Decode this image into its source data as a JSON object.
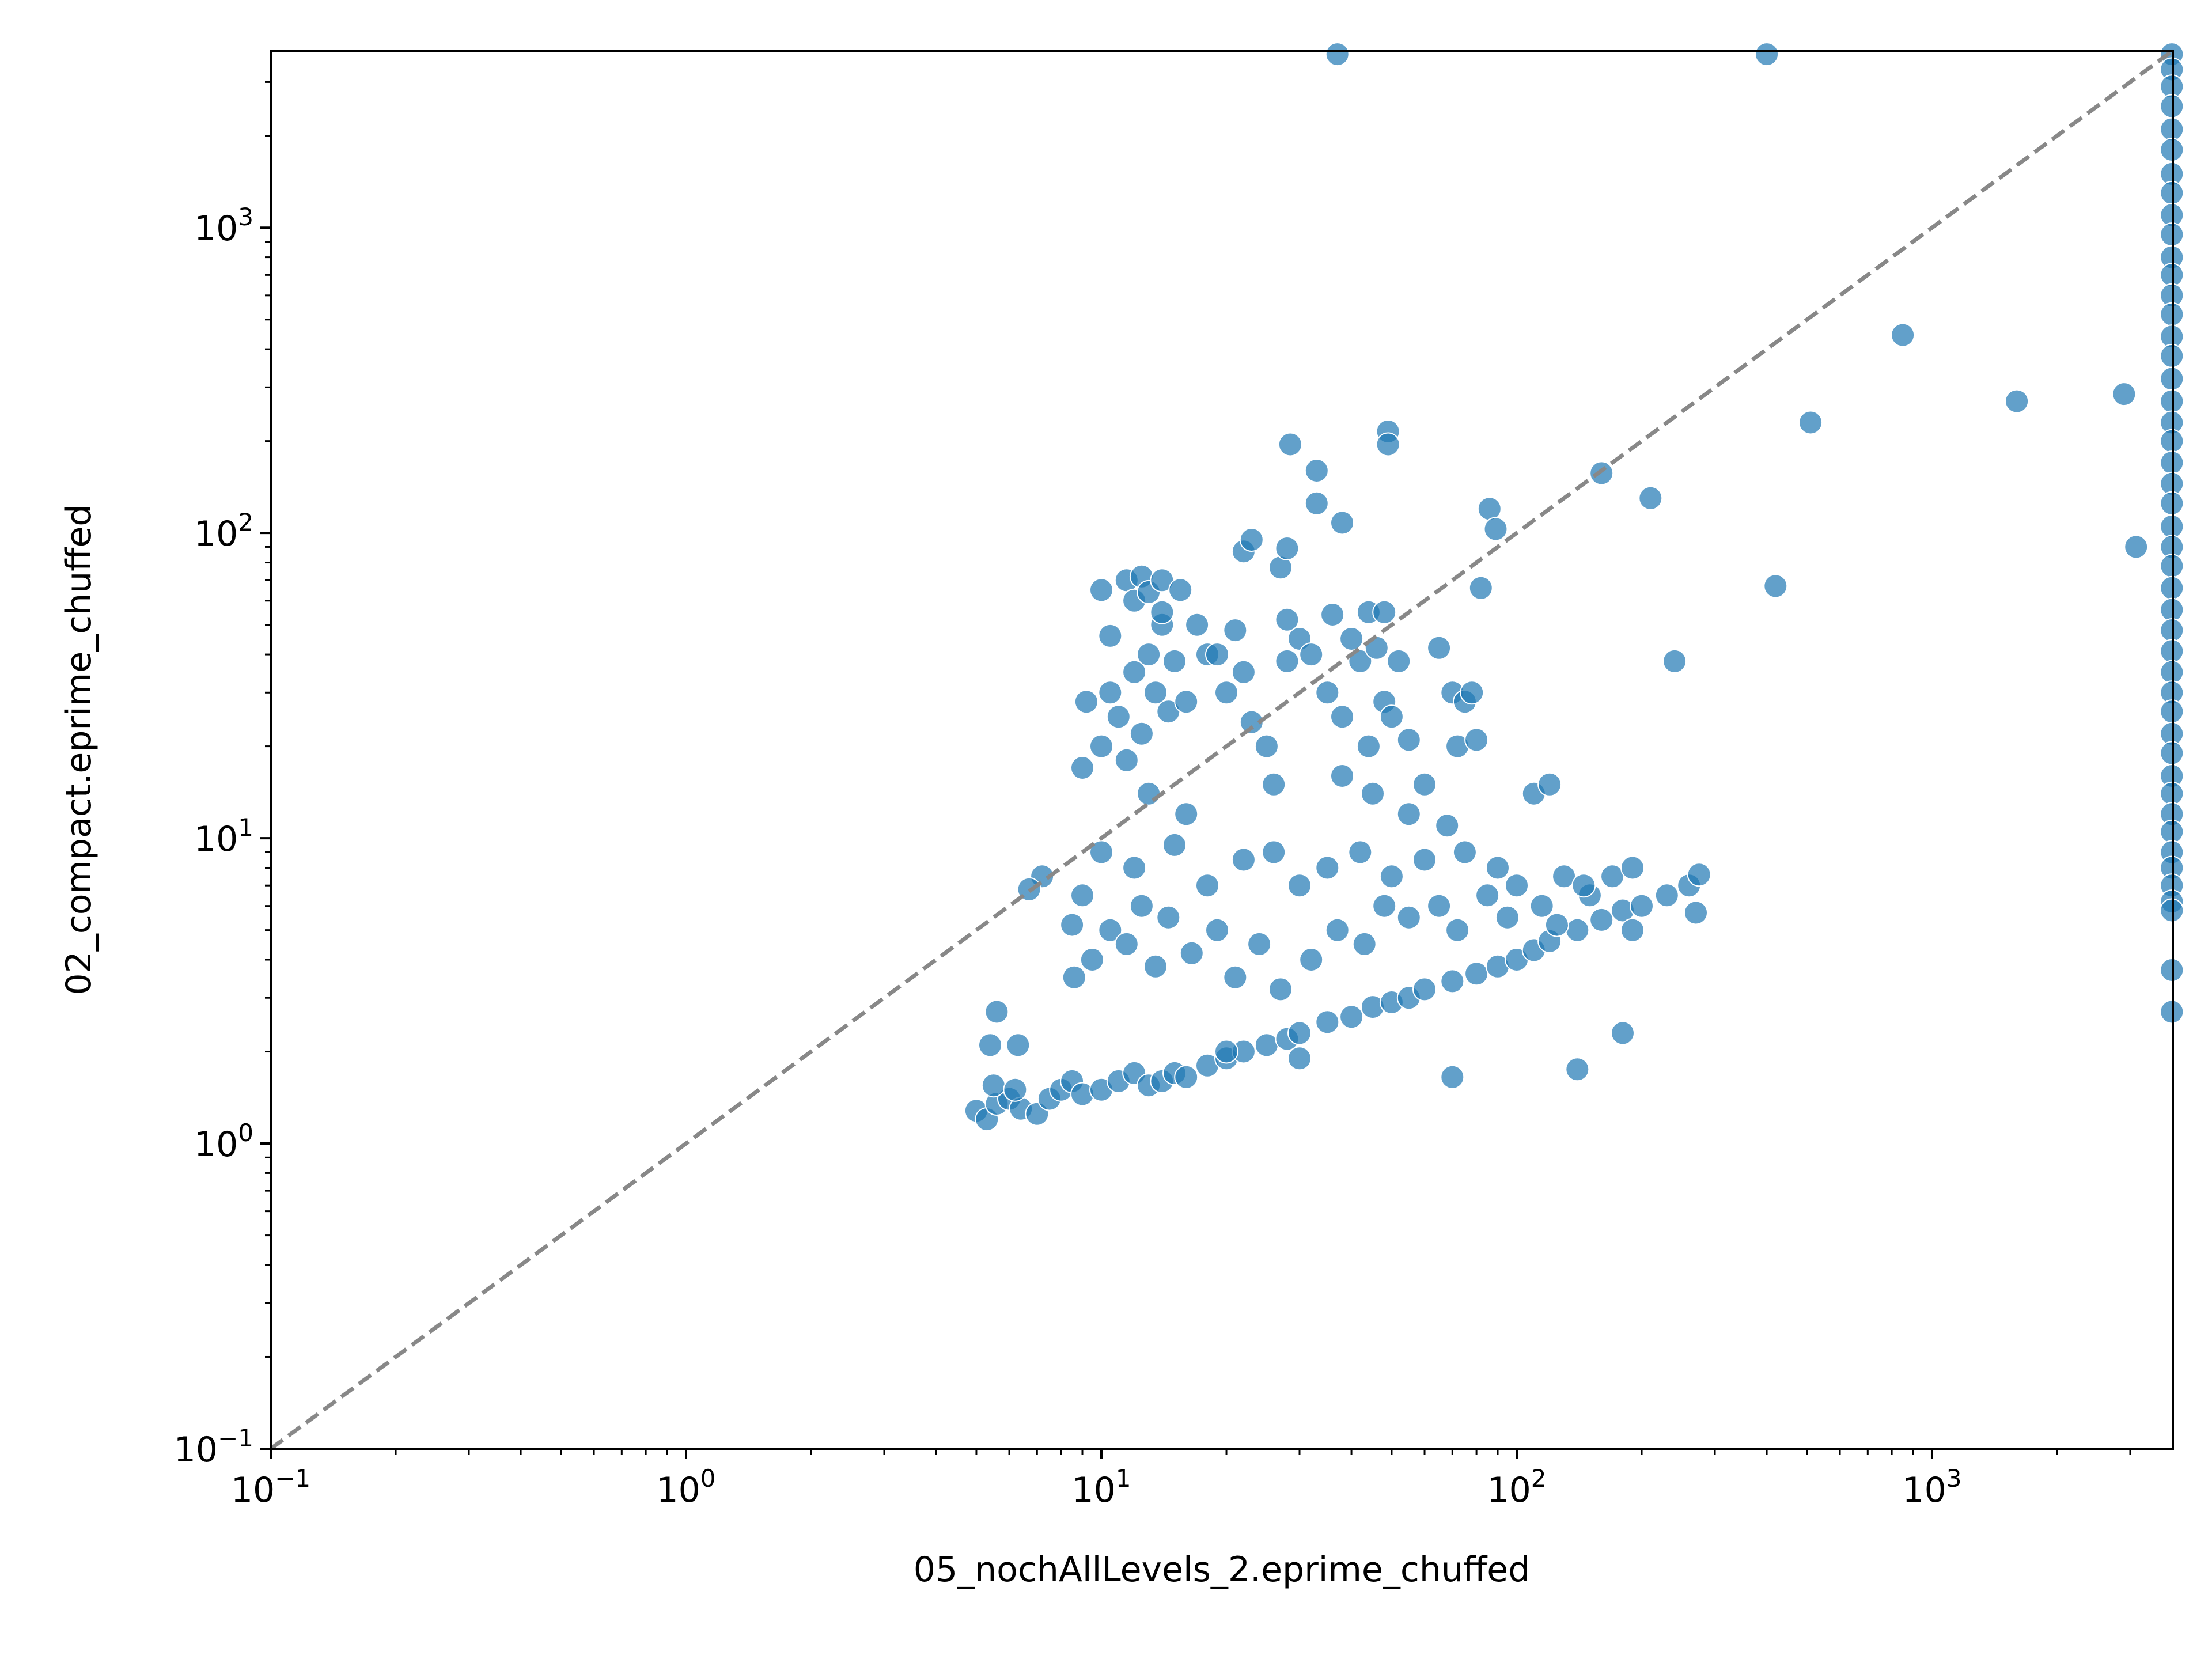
{
  "chart_data": {
    "type": "scatter",
    "title": "",
    "xlabel": "05_nochAllLevels_2.eprime_chuffed",
    "ylabel": "02_compact.eprime_chuffed",
    "xscale": "log",
    "yscale": "log",
    "xlim": [
      0.1,
      3800
    ],
    "ylim": [
      0.1,
      3800
    ],
    "x_ticks": [
      {
        "value": 0.1,
        "base": "10",
        "exp": "−1"
      },
      {
        "value": 1,
        "base": "10",
        "exp": "0"
      },
      {
        "value": 10,
        "base": "10",
        "exp": "1"
      },
      {
        "value": 100,
        "base": "10",
        "exp": "2"
      },
      {
        "value": 1000,
        "base": "10",
        "exp": "3"
      }
    ],
    "y_ticks": [
      {
        "value": 0.1,
        "base": "10",
        "exp": "−1"
      },
      {
        "value": 1,
        "base": "10",
        "exp": "0"
      },
      {
        "value": 10,
        "base": "10",
        "exp": "1"
      },
      {
        "value": 100,
        "base": "10",
        "exp": "2"
      },
      {
        "value": 1000,
        "base": "10",
        "exp": "3"
      }
    ],
    "grid": false,
    "reference_line": "y = x (dashed, gray)",
    "colors": {
      "points": "#1f77b4",
      "point_edge": "#ffffff",
      "reference_line": "#888888",
      "axes": "#000000"
    },
    "series": [
      {
        "points": [
          [
            5.0,
            1.28
          ],
          [
            5.3,
            1.2
          ],
          [
            5.6,
            1.35
          ],
          [
            6.0,
            1.4
          ],
          [
            6.4,
            1.3
          ],
          [
            7.0,
            1.25
          ],
          [
            5.5,
            1.55
          ],
          [
            6.2,
            1.5
          ],
          [
            7.5,
            1.4
          ],
          [
            8.0,
            1.5
          ],
          [
            8.5,
            1.6
          ],
          [
            9.0,
            1.45
          ],
          [
            10.0,
            1.5
          ],
          [
            11.0,
            1.6
          ],
          [
            12.0,
            1.7
          ],
          [
            13.0,
            1.55
          ],
          [
            14.0,
            1.6
          ],
          [
            15.0,
            1.7
          ],
          [
            16.0,
            1.65
          ],
          [
            18.0,
            1.8
          ],
          [
            20.0,
            1.9
          ],
          [
            22.0,
            2.0
          ],
          [
            25.0,
            2.1
          ],
          [
            28.0,
            2.2
          ],
          [
            30.0,
            2.3
          ],
          [
            35.0,
            2.5
          ],
          [
            40.0,
            2.6
          ],
          [
            45.0,
            2.8
          ],
          [
            50.0,
            2.9
          ],
          [
            55.0,
            3.0
          ],
          [
            60.0,
            3.2
          ],
          [
            70.0,
            3.4
          ],
          [
            80.0,
            3.6
          ],
          [
            90.0,
            3.8
          ],
          [
            100.0,
            4.0
          ],
          [
            110.0,
            4.3
          ],
          [
            120.0,
            4.6
          ],
          [
            140.0,
            5.0
          ],
          [
            160.0,
            5.4
          ],
          [
            180.0,
            5.8
          ],
          [
            200.0,
            6.0
          ],
          [
            230.0,
            6.5
          ],
          [
            260.0,
            7.0
          ],
          [
            275.0,
            7.6
          ],
          [
            270.0,
            5.7
          ],
          [
            190.0,
            5.0
          ],
          [
            150.0,
            6.5
          ],
          [
            130.0,
            7.5
          ],
          [
            100.0,
            7.0
          ],
          [
            90.0,
            8.0
          ],
          [
            75.0,
            9.0
          ],
          [
            60.0,
            8.5
          ],
          [
            50.0,
            7.5
          ],
          [
            42.0,
            9.0
          ],
          [
            35.0,
            8.0
          ],
          [
            30.0,
            7.0
          ],
          [
            26.0,
            9.0
          ],
          [
            22.0,
            8.5
          ],
          [
            18.0,
            7.0
          ],
          [
            15.0,
            9.5
          ],
          [
            12.0,
            8.0
          ],
          [
            10.0,
            9.0
          ],
          [
            9.0,
            6.5
          ],
          [
            8.5,
            5.2
          ],
          [
            8.6,
            3.5
          ],
          [
            9.5,
            4.0
          ],
          [
            10.5,
            5.0
          ],
          [
            11.5,
            4.5
          ],
          [
            12.5,
            6.0
          ],
          [
            13.5,
            3.8
          ],
          [
            14.5,
            5.5
          ],
          [
            16.5,
            4.2
          ],
          [
            19.0,
            5.0
          ],
          [
            21.0,
            3.5
          ],
          [
            24.0,
            4.5
          ],
          [
            27.0,
            3.2
          ],
          [
            32.0,
            4.0
          ],
          [
            37.0,
            5.0
          ],
          [
            43.0,
            4.5
          ],
          [
            48.0,
            6.0
          ],
          [
            55.0,
            5.5
          ],
          [
            65.0,
            6.0
          ],
          [
            72.0,
            5.0
          ],
          [
            85.0,
            6.5
          ],
          [
            95.0,
            5.5
          ],
          [
            115.0,
            6.0
          ],
          [
            125.0,
            5.2
          ],
          [
            145.0,
            7.0
          ],
          [
            170.0,
            7.5
          ],
          [
            190.0,
            8.0
          ],
          [
            7.2,
            7.5
          ],
          [
            6.7,
            6.8
          ],
          [
            6.3,
            2.1
          ],
          [
            5.6,
            2.7
          ],
          [
            5.4,
            2.1
          ],
          [
            9.0,
            17.0
          ],
          [
            9.2,
            28.0
          ],
          [
            10.0,
            20.0
          ],
          [
            10.5,
            30.0
          ],
          [
            11.0,
            25.0
          ],
          [
            11.5,
            18.0
          ],
          [
            12.0,
            35.0
          ],
          [
            12.5,
            22.0
          ],
          [
            13.0,
            40.0
          ],
          [
            13.5,
            30.0
          ],
          [
            14.0,
            50.0
          ],
          [
            14.5,
            26.0
          ],
          [
            15.0,
            38.0
          ],
          [
            16.0,
            28.0
          ],
          [
            17.0,
            50.0
          ],
          [
            18.0,
            40.0
          ],
          [
            10.0,
            65.0
          ],
          [
            10.5,
            46.0
          ],
          [
            11.5,
            70.0
          ],
          [
            12.0,
            60.0
          ],
          [
            12.5,
            72.0
          ],
          [
            13.0,
            64.0
          ],
          [
            14.0,
            70.0
          ],
          [
            15.5,
            65.0
          ],
          [
            14.0,
            55.0
          ],
          [
            13.0,
            14.0
          ],
          [
            16.0,
            12.0
          ],
          [
            19.0,
            40.0
          ],
          [
            20.0,
            30.0
          ],
          [
            21.0,
            48.0
          ],
          [
            22.0,
            35.0
          ],
          [
            23.0,
            24.0
          ],
          [
            25.0,
            20.0
          ],
          [
            26.0,
            15.0
          ],
          [
            28.0,
            38.0
          ],
          [
            30.0,
            45.0
          ],
          [
            32.0,
            40.0
          ],
          [
            35.0,
            30.0
          ],
          [
            38.0,
            25.0
          ],
          [
            40.0,
            45.0
          ],
          [
            42.0,
            38.0
          ],
          [
            44.0,
            55.0
          ],
          [
            46.0,
            42.0
          ],
          [
            48.0,
            28.0
          ],
          [
            50.0,
            25.0
          ],
          [
            52.0,
            38.0
          ],
          [
            55.0,
            21.0
          ],
          [
            60.0,
            15.0
          ],
          [
            65.0,
            42.0
          ],
          [
            70.0,
            30.0
          ],
          [
            72.0,
            20.0
          ],
          [
            75.0,
            28.0
          ],
          [
            78.0,
            30.0
          ],
          [
            80.0,
            21.0
          ],
          [
            36.0,
            54.0
          ],
          [
            48.0,
            55.0
          ],
          [
            38.0,
            16.0
          ],
          [
            45.0,
            14.0
          ],
          [
            55.0,
            12.0
          ],
          [
            68.0,
            11.0
          ],
          [
            110.0,
            14.0
          ],
          [
            120.0,
            15.0
          ],
          [
            28.0,
            52.0
          ],
          [
            44.0,
            20.0
          ],
          [
            22.0,
            87.0
          ],
          [
            23.0,
            95.0
          ],
          [
            27.0,
            77.0
          ],
          [
            28.0,
            89.0
          ],
          [
            28.5,
            195.0
          ],
          [
            33.0,
            160.0
          ],
          [
            33.0,
            125.0
          ],
          [
            38.0,
            108.0
          ],
          [
            49.0,
            215.0
          ],
          [
            49.0,
            195.0
          ],
          [
            82.0,
            66.0
          ],
          [
            86.0,
            120.0
          ],
          [
            89.0,
            103.0
          ],
          [
            160.0,
            157.0
          ],
          [
            210.0,
            130.0
          ],
          [
            240.0,
            38.0
          ],
          [
            850.0,
            445.0
          ],
          [
            510.0,
            230.0
          ],
          [
            420.0,
            67.0
          ],
          [
            1600.0,
            270.0
          ],
          [
            2900.0,
            285.0
          ],
          [
            3100.0,
            90.0
          ],
          [
            70.0,
            1.65
          ],
          [
            140.0,
            1.75
          ],
          [
            180.0,
            2.3
          ],
          [
            30.0,
            1.9
          ],
          [
            20.0,
            2.0
          ],
          [
            37.0,
            3700.0
          ],
          [
            400.0,
            3700.0
          ],
          [
            3780.0,
            3700.0
          ],
          [
            3780.0,
            3300.0
          ],
          [
            3780.0,
            2900.0
          ],
          [
            3780.0,
            2500.0
          ],
          [
            3780.0,
            2100.0
          ],
          [
            3780.0,
            1800.0
          ],
          [
            3780.0,
            1500.0
          ],
          [
            3780.0,
            1300.0
          ],
          [
            3780.0,
            1100.0
          ],
          [
            3780.0,
            950.0
          ],
          [
            3780.0,
            800.0
          ],
          [
            3780.0,
            700.0
          ],
          [
            3780.0,
            600.0
          ],
          [
            3780.0,
            520.0
          ],
          [
            3780.0,
            440.0
          ],
          [
            3780.0,
            380.0
          ],
          [
            3780.0,
            320.0
          ],
          [
            3780.0,
            270.0
          ],
          [
            3780.0,
            230.0
          ],
          [
            3780.0,
            200.0
          ],
          [
            3780.0,
            170.0
          ],
          [
            3780.0,
            145.0
          ],
          [
            3780.0,
            125.0
          ],
          [
            3780.0,
            105.0
          ],
          [
            3780.0,
            90.0
          ],
          [
            3780.0,
            78.0
          ],
          [
            3780.0,
            66.0
          ],
          [
            3780.0,
            56.0
          ],
          [
            3780.0,
            48.0
          ],
          [
            3780.0,
            41.0
          ],
          [
            3780.0,
            35.0
          ],
          [
            3780.0,
            30.0
          ],
          [
            3780.0,
            26.0
          ],
          [
            3780.0,
            22.0
          ],
          [
            3780.0,
            19.0
          ],
          [
            3780.0,
            16.0
          ],
          [
            3780.0,
            14.0
          ],
          [
            3780.0,
            12.0
          ],
          [
            3780.0,
            10.5
          ],
          [
            3780.0,
            9.0
          ],
          [
            3780.0,
            8.0
          ],
          [
            3780.0,
            7.0
          ],
          [
            3780.0,
            6.2
          ],
          [
            3780.0,
            5.8
          ],
          [
            3780.0,
            3.7
          ],
          [
            3780.0,
            2.7
          ]
        ]
      }
    ]
  }
}
